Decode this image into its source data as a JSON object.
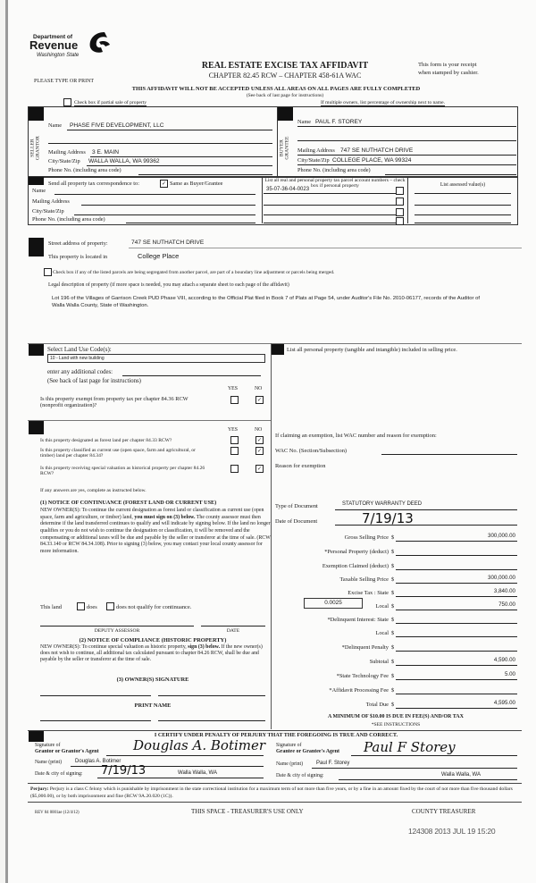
{
  "header": {
    "logo_line1": "Department of",
    "logo_line2": "Revenue",
    "logo_line3": "Washington State",
    "title": "REAL ESTATE EXCISE TAX AFFIDAVIT",
    "chapter": "CHAPTER 82.45 RCW – CHAPTER 458-61A WAC",
    "please_type": "PLEASE TYPE OR PRINT",
    "receipt_line1": "This form is your receipt",
    "receipt_line2": "when stamped by cashier.",
    "warning": "THIS AFFIDAVIT WILL NOT BE ACCEPTED UNLESS ALL AREAS ON ALL PAGES ARE FULLY COMPLETED",
    "see_back": "(See back of last page for instructions)",
    "partial_sale_label": "Check box if partial sale of property",
    "partial_sale_checked": false,
    "multiple_owners": "If multiple owners, list percentage of ownership next to name."
  },
  "seller": {
    "side_label": "SELLER GRANTOR",
    "name_label": "Name",
    "name": "PHASE FIVE DEVELOPMENT, LLC",
    "mailing_label": "Mailing Address",
    "mailing": "3 E. MAIN",
    "city_label": "City/State/Zip",
    "city": "WALLA WALLA, WA  99362",
    "phone_label": "Phone No. (including area code)"
  },
  "buyer": {
    "side_label": "BUYER GRANTEE",
    "name_label": "Name",
    "name": "PAUL F. STOREY",
    "mailing_label": "Mailing Address",
    "mailing": "747 SE NUTHATCH DRIVE",
    "city_label": "City/State/Zip",
    "city": "COLLEGE PLACE, WA  99324",
    "phone_label": "Phone No. (including area code)"
  },
  "correspondence": {
    "label": "Send all property tax correspondence to:",
    "same_label": "Same as Buyer/Grantee",
    "same_checked": true,
    "name_label": "Name",
    "mailing_label": "Mailing Address",
    "city_label": "City/State/Zip",
    "phone_label": "Phone No. (including area code)",
    "parcel_header": "List all real and personal property tax parcel account numbers – check box if personal property",
    "assessed_header": "List assessed value(s)",
    "parcels": [
      "35-07-36-04-0023",
      "",
      "",
      ""
    ]
  },
  "property": {
    "street_label": "Street address of property:",
    "street": "747 SE NUTHATCH DRIVE",
    "located_label": "This property is located in",
    "located": "College Place",
    "segregated_label": "Check box if any of the listed parcels are being segregated from another parcel, are part of a boundary line adjustment or parcels being merged.",
    "legal_label": "Legal description of property (if more space is needed, you may attach a separate sheet to each page of the affidavit)",
    "legal": "Lot 196 of the Villages of Garrison Creek PUD Phase VIII, according to the Official Plat filed in Book 7 of Plats at Page 54, under Auditor's File No. 2010-06177, records of the Auditor of Walla Walla County, State of Washington."
  },
  "land_use": {
    "label": "Select Land Use Code(s):",
    "selected": "10 - Land with new building",
    "additional_label": "enter any additional codes:",
    "see_back": "(See back of last page for instructions)",
    "yes": "YES",
    "no": "NO",
    "exempt_q": "Is this property exempt from property tax per chapter 84.36 RCW (nonprofit organization)?"
  },
  "designation": {
    "yes": "YES",
    "no": "NO",
    "q1": "Is this property designated as forest land per chapter 84.33 RCW?",
    "q2": "Is this property classified as current use (open space, farm and agricultural, or timber) land per chapter 84.34?",
    "q3": "Is this property receiving special valuation as historical property per chapter 84.26 RCW?",
    "if_yes": "If any answers are yes, complete as instructed below.",
    "notice1_title": "(1) NOTICE OF CONTINUANCE (FOREST LAND OR CURRENT USE)",
    "notice1_a": "NEW OWNER(S): To continue the current designation as forest land or classification as current use (open space, farm and agriculture, or timber) land, ",
    "notice1_bold": "you must sign on (3) below.",
    "notice1_b": " The county assessor must then determine if the land transferred continues to qualify and will indicate by signing below. If the land no longer qualifies or you do not wish to continue the designation or classification, it will be removed and the compensating or additional taxes will be due and payable by the seller or transferor at the time of sale. (RCW 84.33.140 or RCW 84.34.108). Prior to signing (3) below, you may contact your local county assessor for more information.",
    "this_land": "This land",
    "does": "does",
    "does_not": "does not qualify for continuance.",
    "deputy": "DEPUTY ASSESSOR",
    "date": "DATE",
    "notice2_title": "(2) NOTICE OF COMPLIANCE (HISTORIC PROPERTY)",
    "notice2_a": "NEW OWNER(S): To continue special valuation as historic property, ",
    "notice2_bold": "sign (3) below.",
    "notice2_b": " If the new owner(s) does not wish to continue, all additional tax calculated pursuant to chapter 84.26 RCW, shall be due and payable by the seller or transferor at the time of sale.",
    "owner_sig": "(3) OWNER(S) SIGNATURE",
    "print_name": "PRINT NAME"
  },
  "personal_property": {
    "label": "List all  personal property (tangible and intangible) included in selling price."
  },
  "exemption": {
    "label": "If claiming an exemption, list WAC number and reason for exemption:",
    "wac_label": "WAC No. (Section/Subsection)",
    "reason_label": "Reason for exemption"
  },
  "document": {
    "type_label": "Type of Document",
    "type": "STATUTORY WARRANTY DEED",
    "date_label": "Date of Document",
    "date": "7/19/13"
  },
  "amounts": {
    "local_rate": "0.0025",
    "rows": [
      {
        "label": "Gross Selling Price",
        "value": "300,000.00"
      },
      {
        "label": "*Personal Property (deduct)",
        "value": ""
      },
      {
        "label": "Exemption Claimed (deduct)",
        "value": ""
      },
      {
        "label": "Taxable Selling Price",
        "value": "300,000.00"
      },
      {
        "label": "Excise Tax : State",
        "value": "3,840.00"
      },
      {
        "label": "Local",
        "value": "750.00"
      },
      {
        "label": "*Delinquent Interest: State",
        "value": ""
      },
      {
        "label": "Local",
        "value": ""
      },
      {
        "label": "*Delinquent Penalty",
        "value": ""
      },
      {
        "label": "Subtotal",
        "value": "4,590.00"
      },
      {
        "label": "*State Technology Fee",
        "value": "5.00"
      },
      {
        "label": "*Affidavit Processing Fee",
        "value": ""
      },
      {
        "label": "Total Due",
        "value": "4,595.00"
      }
    ],
    "currency": "$",
    "minimum": "A MINIMUM OF $10.00 IS DUE IN FEE(S) AND/OR TAX",
    "see_instructions": "*SEE INSTRUCTIONS"
  },
  "certify": {
    "statement": "I CERTIFY UNDER PENALTY OF PERJURY THAT THE FOREGOING IS TRUE AND CORRECT.",
    "grantor_sig_label1": "Signature of",
    "grantor_sig_label2": "Grantor or Grantor's Agent",
    "grantor_signature": "Douglas A. Botimer",
    "grantor_name_label": "Name (print)",
    "grantor_name": "Douglas A. Botimer",
    "grantor_date_label": "Date & city of signing:",
    "grantor_date": "7/19/13",
    "grantor_city": "Walla Walla, WA",
    "grantee_sig_label1": "Signature of",
    "grantee_sig_label2": "Grantee or Grantee's Agent",
    "grantee_signature": "Paul F Storey",
    "grantee_name_label": "Name (print)",
    "grantee_name": "Paul F. Storey",
    "grantee_date_label": "Date & city of signing:",
    "grantee_city": "Walla Walla, WA"
  },
  "footer": {
    "perjury_bold": "Perjury:",
    "perjury": " Perjury is a class C felony which is punishable by imprisonment in the state correctional institution for a maximum term of not more than five years, or by a fine in an amount fixed by the court of not more than five thousand dollars ($5,000.00), or by both imprisonment and fine (RCW 9A.20.020 (1C)).",
    "rev": "REV 84 0001ae (12/4/12)",
    "treasurer_use": "THIS SPACE - TREASURER'S USE ONLY",
    "county_treasurer": "COUNTY TREASURER",
    "stamp": "124308 2013 JUL 19 15:20"
  }
}
